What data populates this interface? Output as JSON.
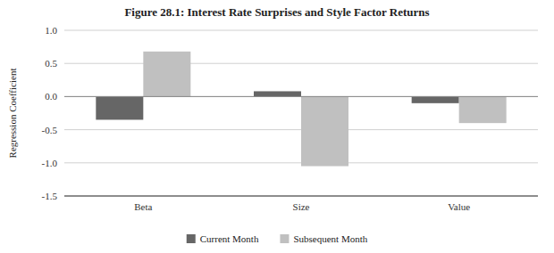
{
  "chart_data": {
    "type": "bar",
    "title": "Figure 28.1: Interest Rate Surprises and Style Factor Returns",
    "categories": [
      "Beta",
      "Size",
      "Value"
    ],
    "series": [
      {
        "name": "Current Month",
        "color": "#666666",
        "values": [
          -0.35,
          0.08,
          -0.1
        ]
      },
      {
        "name": "Subsequent Month",
        "color": "#c0c0c0",
        "values": [
          0.68,
          -1.05,
          -0.4
        ]
      }
    ],
    "ylabel": "Regression Coefficient",
    "ylim": [
      -1.5,
      1.0
    ],
    "yticks": [
      {
        "value": -1.5,
        "label": "-1.5"
      },
      {
        "value": -1.0,
        "label": "-1.0"
      },
      -0.5,
      {
        "value": 0.0,
        "label": "0.0"
      },
      0.5,
      {
        "value": 1.0,
        "label": "1.0"
      }
    ],
    "grid": true,
    "legend": "bottom"
  }
}
